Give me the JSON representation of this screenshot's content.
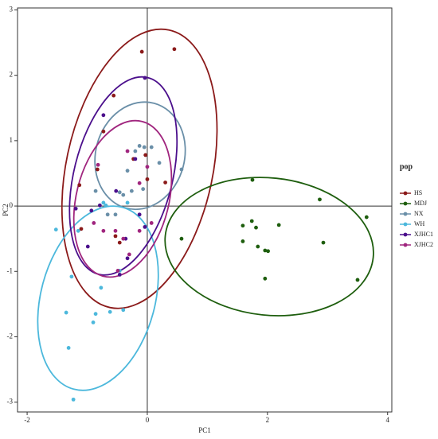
{
  "chart_data": {
    "type": "scatter",
    "x_label": "PC1",
    "y_label": "PC2",
    "legend_title": "pop",
    "legend": "right",
    "xlim": [
      -2.16,
      4.07
    ],
    "ylim": [
      -3.15,
      3.03
    ],
    "xticks": [
      -2,
      0,
      2,
      4
    ],
    "yticks": [
      -3,
      -2,
      -1,
      0,
      1,
      2,
      3
    ],
    "series": [
      {
        "name": "HS",
        "color": "#8b1a1a",
        "x": [
          -0.09,
          0.45,
          -0.56,
          -0.73,
          -0.23,
          -0.03,
          -0.83,
          -1.13,
          0,
          0.3,
          -0.53,
          -0.46,
          -1.1
        ],
        "values": [
          2.36,
          2.4,
          1.69,
          1.14,
          0.72,
          0.78,
          0.56,
          0.32,
          0.41,
          0.36,
          -0.46,
          -0.56,
          -0.35
        ],
        "ellipse": {
          "cx": -0.13,
          "cy": 0.57,
          "rx": 1.22,
          "ry": 2.17,
          "angle": 12
        }
      },
      {
        "name": "MDJ",
        "color": "#1e5e0e",
        "x": [
          1.75,
          2.87,
          3.65,
          0.57,
          1.59,
          1.74,
          1.81,
          1.59,
          2.19,
          1.84,
          1.96,
          2.01,
          1.96,
          2.93,
          3.5
        ],
        "values": [
          0.4,
          0.1,
          -0.17,
          -0.5,
          -0.3,
          -0.23,
          -0.33,
          -0.54,
          -0.29,
          -0.62,
          -0.68,
          -0.69,
          -1.11,
          -0.56,
          -1.13
        ],
        "ellipse": {
          "cx": 2.03,
          "cy": -0.62,
          "rx": 1.74,
          "ry": 1.05,
          "angle": 6
        }
      },
      {
        "name": "NX",
        "color": "#6a8fa8",
        "x": [
          -0.13,
          -0.05,
          0.07,
          -0.2,
          -0.33,
          -0.26,
          0.2,
          0.57,
          -0.86,
          -0.66,
          -0.46,
          -0.4,
          -0.07,
          -0.53
        ],
        "values": [
          0.92,
          0.9,
          0.9,
          0.84,
          0.54,
          0.23,
          0.66,
          0.56,
          0.23,
          -0.13,
          0.21,
          0.17,
          0.26,
          -0.13
        ],
        "ellipse": {
          "cx": -0.12,
          "cy": 0.77,
          "rx": 0.74,
          "ry": 0.83,
          "angle": 15
        }
      },
      {
        "name": "WH",
        "color": "#4cb8dc",
        "x": [
          -1.23,
          -1.31,
          -1.35,
          -0.9,
          -0.86,
          -0.77,
          -0.62,
          -0.4,
          -1.52,
          -1.26,
          -0.73,
          -0.69,
          -0.33,
          -0.46,
          -1.15
        ],
        "values": [
          -2.96,
          -2.17,
          -1.63,
          -1.78,
          -1.65,
          -1.25,
          -1.62,
          -1.59,
          -0.36,
          -1.08,
          0.05,
          0.01,
          0.05,
          -0.99,
          -0.38
        ],
        "ellipse": {
          "cx": -0.82,
          "cy": -1.41,
          "rx": 0.95,
          "ry": 1.44,
          "angle": 15
        }
      },
      {
        "name": "XJHC1",
        "color": "#4b0f8c",
        "x": [
          -0.04,
          -0.73,
          -0.2,
          -0.52,
          -0.93,
          -0.79,
          -1.19,
          -0.13,
          -0.04,
          -0.36,
          -0.99,
          -0.33,
          -0.46
        ],
        "values": [
          1.96,
          1.39,
          0.72,
          0.23,
          -0.07,
          0.01,
          -0.04,
          -0.13,
          -0.32,
          -0.5,
          -0.62,
          -0.8,
          -1.05
        ],
        "ellipse": {
          "cx": -0.4,
          "cy": 0.46,
          "rx": 0.82,
          "ry": 1.55,
          "angle": 14
        }
      },
      {
        "name": "XJHC2",
        "color": "#a0257e",
        "x": [
          -0.82,
          -0.33,
          0,
          -0.13,
          -0.73,
          -0.53,
          -0.4,
          -0.13,
          0.07,
          -0.89,
          -0.3,
          -0.49
        ],
        "values": [
          0.63,
          0.84,
          0.6,
          0.35,
          -0.38,
          -0.38,
          -0.5,
          -0.38,
          -0.26,
          -0.26,
          -0.74,
          -0.99
        ],
        "ellipse": {
          "cx": -0.41,
          "cy": 0.11,
          "rx": 0.77,
          "ry": 1.22,
          "angle": 14
        }
      }
    ]
  }
}
